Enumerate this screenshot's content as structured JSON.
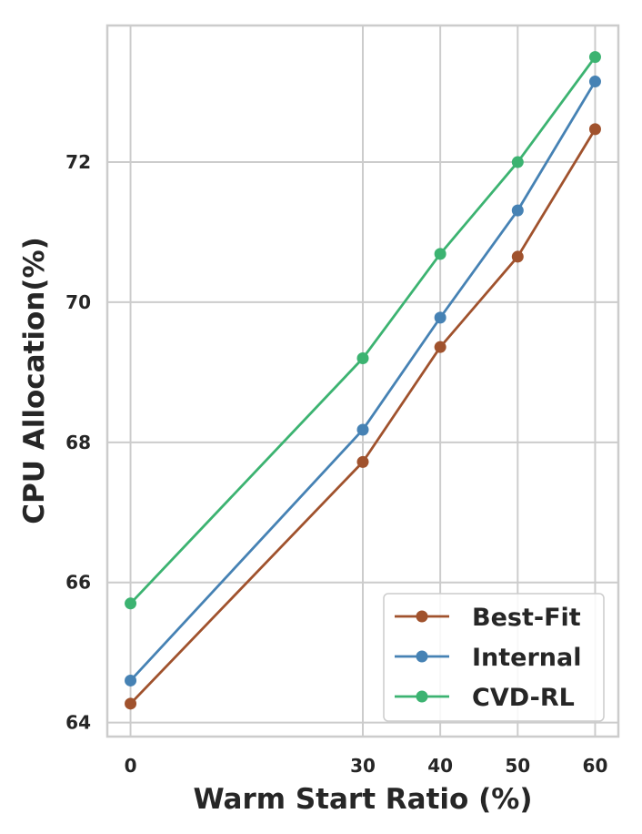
{
  "chart_data": {
    "type": "line",
    "xlabel": "Warm Start Ratio (%)",
    "ylabel": "CPU Allocation(%)",
    "x": [
      0,
      30,
      40,
      50,
      60
    ],
    "xticks": [
      0,
      30,
      40,
      50,
      60
    ],
    "yticks": [
      64,
      66,
      68,
      70,
      72
    ],
    "xlim": [
      -3,
      63
    ],
    "ylim": [
      63.8,
      73.95
    ],
    "grid": true,
    "legend_position": "bottom-right",
    "series": [
      {
        "name": "Best-Fit",
        "color": "#a0522d",
        "values": [
          64.27,
          67.72,
          69.36,
          70.65,
          72.47
        ]
      },
      {
        "name": "Internal",
        "color": "#4682b4",
        "values": [
          64.6,
          68.18,
          69.78,
          71.31,
          73.15
        ]
      },
      {
        "name": "CVD-RL",
        "color": "#3cb371",
        "values": [
          65.7,
          69.2,
          70.69,
          72.0,
          73.5
        ]
      }
    ]
  }
}
